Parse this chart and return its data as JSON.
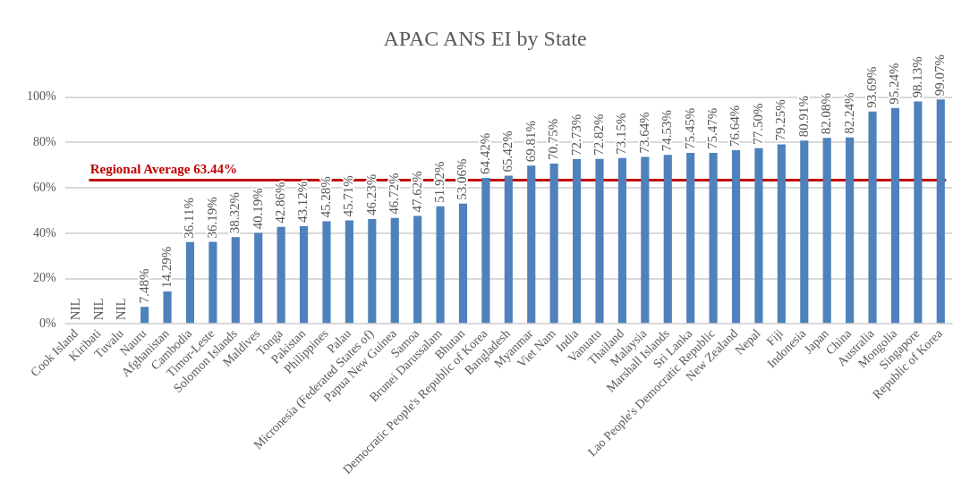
{
  "chart_data": {
    "type": "bar",
    "title": "APAC ANS EI by State",
    "categories": [
      "Cook Island",
      "Kiribati",
      "Tuvalu",
      "Nauru",
      "Afghanistan",
      "Cambodia",
      "Timor-Leste",
      "Solomon Islands",
      "Maldives",
      "Tonga",
      "Pakistan",
      "Philippines",
      "Palau",
      "Micronesia (Federated States of)",
      "Papua New Guinea",
      "Samoa",
      "Brunei Darussalam",
      "Bhutan",
      "Democratic People's Republic of Korea",
      "Bangladesh",
      "Myanmar",
      "Viet Nam",
      "India",
      "Vanuatu",
      "Thailand",
      "Malaysia",
      "Marshall Islands",
      "Sri Lanka",
      "Lao People's Democratic Republic",
      "New Zealand",
      "Nepal",
      "Fiji",
      "Indonesia",
      "Japan",
      "China",
      "Australia",
      "Mongolia",
      "Singapore",
      "Republic of Korea"
    ],
    "values": [
      null,
      null,
      null,
      7.48,
      14.29,
      36.11,
      36.19,
      38.32,
      40.19,
      42.86,
      43.12,
      45.28,
      45.71,
      46.23,
      46.72,
      47.62,
      51.92,
      53.06,
      64.42,
      65.42,
      69.81,
      70.75,
      72.73,
      72.82,
      73.15,
      73.64,
      74.53,
      75.45,
      75.47,
      76.64,
      77.5,
      79.25,
      80.91,
      82.08,
      82.24,
      93.69,
      95.24,
      98.13,
      99.07
    ],
    "value_labels": [
      "NIL",
      "NIL",
      "NIL",
      "7.48%",
      "14.29%",
      "36.11%",
      "36.19%",
      "38.32%",
      "40.19%",
      "42.86%",
      "43.12%",
      "45.28%",
      "45.71%",
      "46.23%",
      "46.72%",
      "47.62%",
      "51.92%",
      "53.06%",
      "64.42%",
      "65.42%",
      "69.81%",
      "70.75%",
      "72.73%",
      "72.82%",
      "73.15%",
      "73.64%",
      "74.53%",
      "75.45%",
      "75.47%",
      "76.64%",
      "77.50%",
      "79.25%",
      "80.91%",
      "82.08%",
      "82.24%",
      "93.69%",
      "95.24%",
      "98.13%",
      "99.07%"
    ],
    "color": "#4f81bd",
    "ylim": [
      0,
      100
    ],
    "yticks": [
      {
        "value": 0,
        "label": "0%"
      },
      {
        "value": 20,
        "label": "20%"
      },
      {
        "value": 40,
        "label": "40%"
      },
      {
        "value": 60,
        "label": "60%"
      },
      {
        "value": 80,
        "label": "80%"
      },
      {
        "value": 100,
        "label": "100%"
      }
    ],
    "grid": "y",
    "ref_lines": [
      {
        "axis": "y",
        "value": 63.44,
        "label": "Regional Average 63.44%",
        "color": "#c00000"
      }
    ]
  }
}
